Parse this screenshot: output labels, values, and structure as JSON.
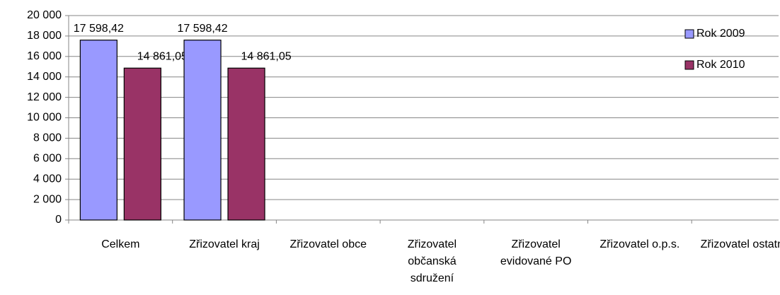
{
  "chart_data": {
    "type": "bar",
    "categories": [
      "Celkem",
      "Zřizovatel kraj",
      "Zřizovatel obce",
      "Zřizovatel občanská sdružení",
      "Zřizovatel evidované PO",
      "Zřizovatel o.p.s.",
      "Zřizovatel ostatní"
    ],
    "series": [
      {
        "name": "Rok 2009",
        "color": "#9999ff",
        "values": [
          17598.42,
          17598.42,
          null,
          null,
          null,
          null,
          null
        ],
        "value_labels": [
          "17 598,42",
          "17 598,42",
          null,
          null,
          null,
          null,
          null
        ]
      },
      {
        "name": "Rok 2010",
        "color": "#993366",
        "values": [
          14861.05,
          14861.05,
          null,
          null,
          null,
          null,
          null
        ],
        "value_labels": [
          "14 861,05",
          "14 861,05",
          null,
          null,
          null,
          null,
          null
        ]
      }
    ],
    "ylim": [
      0,
      20000
    ],
    "yticks": [
      0,
      {
        "value": 2000,
        "label": "2 000"
      },
      {
        "value": 4000,
        "label": "4 000"
      },
      {
        "value": 6000,
        "label": "6 000"
      },
      {
        "value": 8000,
        "label": "8 000"
      },
      {
        "value": 10000,
        "label": "10 000"
      },
      {
        "value": 12000,
        "label": "12 000"
      },
      {
        "value": 14000,
        "label": "14 000"
      },
      {
        "value": 16000,
        "label": "16 000"
      },
      {
        "value": 18000,
        "label": "18 000"
      },
      {
        "value": 20000,
        "label": "20 000"
      }
    ],
    "grid": true,
    "legend": "right"
  }
}
